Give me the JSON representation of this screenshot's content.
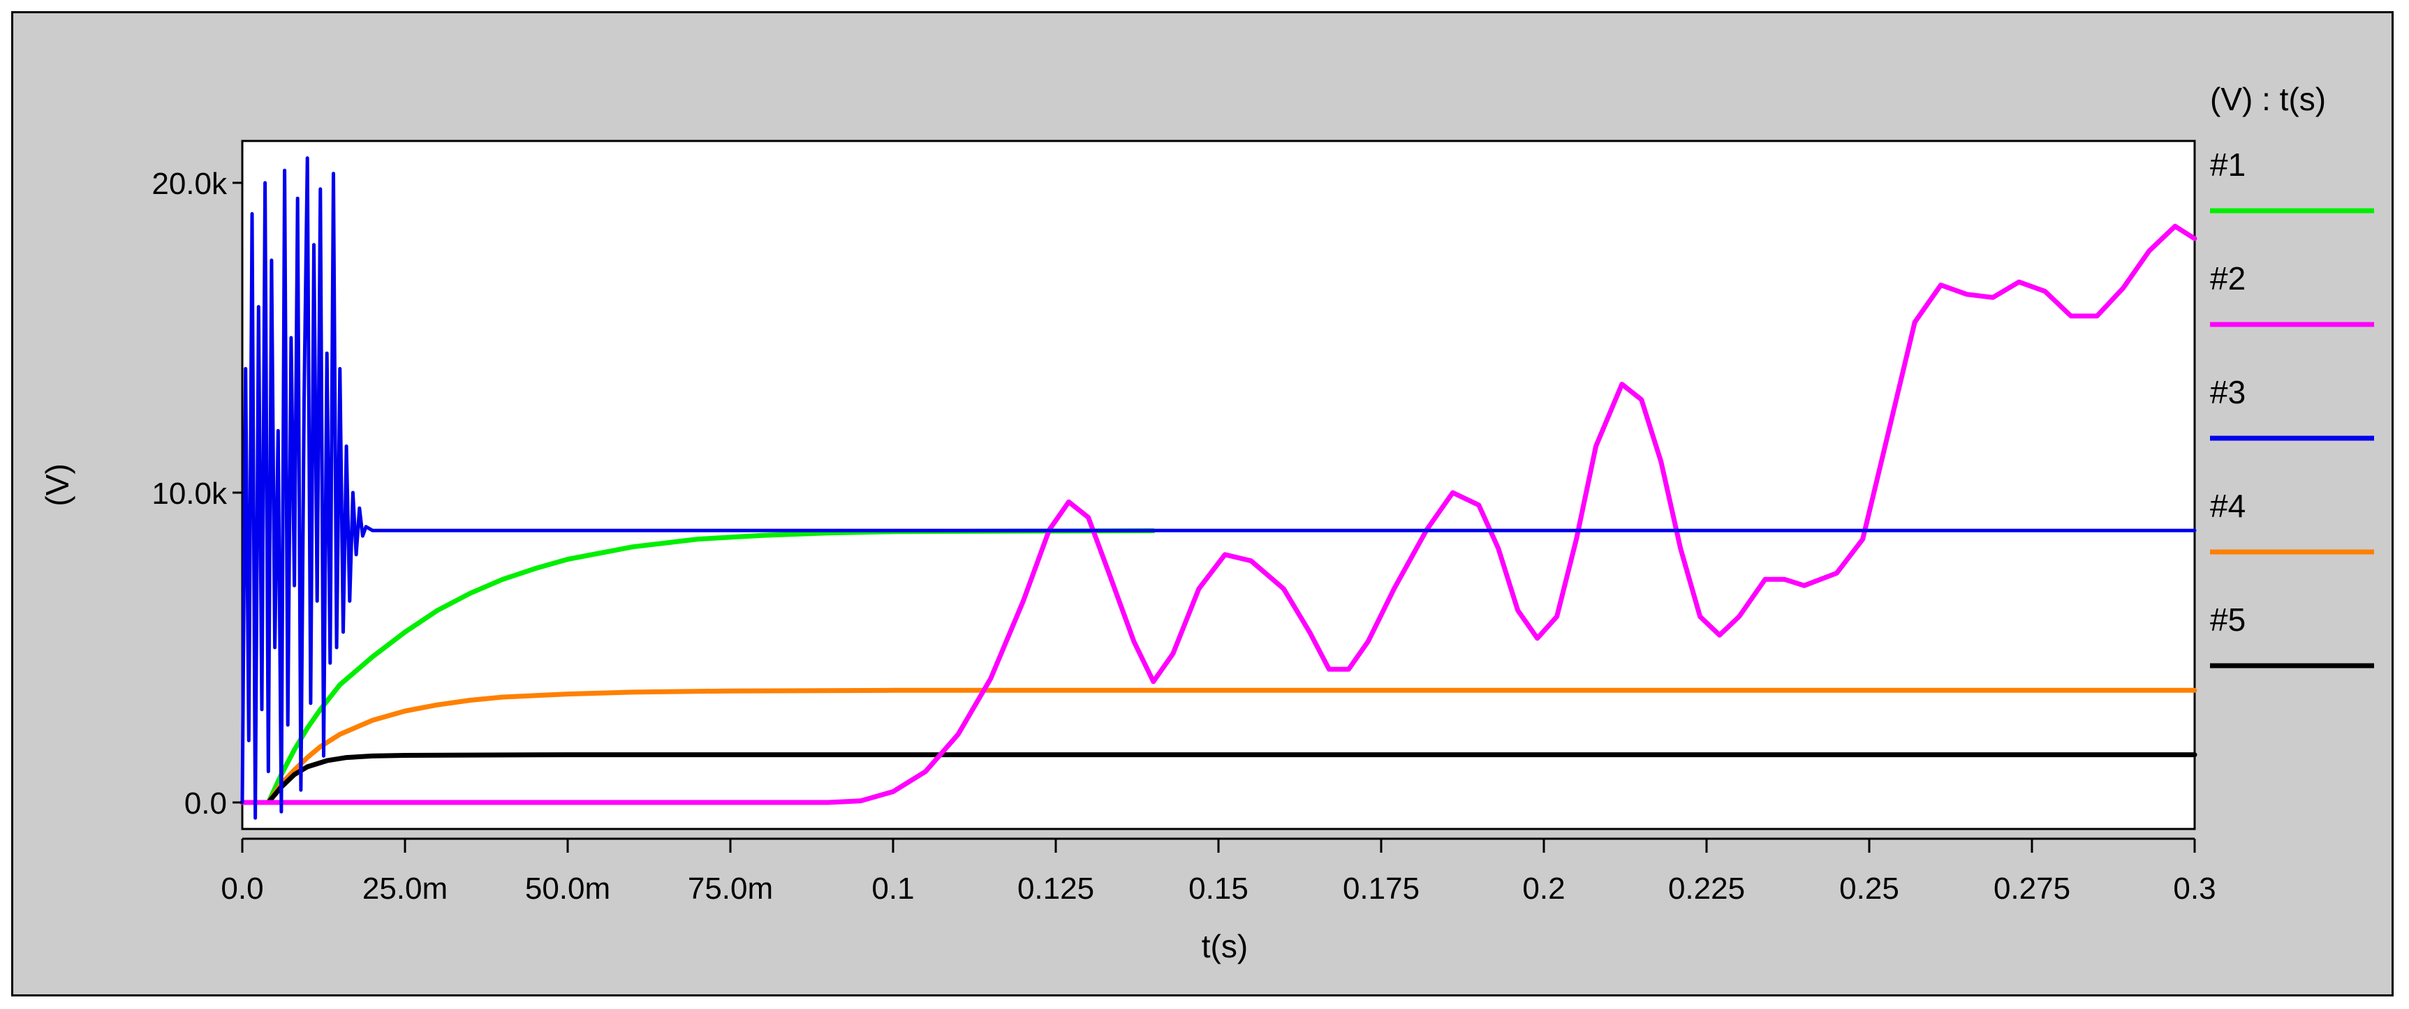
{
  "chart_data": {
    "type": "line",
    "title": "",
    "xlabel": "t(s)",
    "ylabel": "(V)",
    "legend_title": "(V) : t(s)",
    "legend_placement": "right",
    "grid": false,
    "xlim": [
      0,
      0.3
    ],
    "ylim": [
      -800,
      21500
    ],
    "x_ticks": [
      {
        "value": 0,
        "label": "0.0"
      },
      {
        "value": 0.025,
        "label": "25.0m"
      },
      {
        "value": 0.05,
        "label": "50.0m"
      },
      {
        "value": 0.075,
        "label": "75.0m"
      },
      {
        "value": 0.1,
        "label": "0.1"
      },
      {
        "value": 0.125,
        "label": "0.125"
      },
      {
        "value": 0.15,
        "label": "0.15"
      },
      {
        "value": 0.175,
        "label": "0.175"
      },
      {
        "value": 0.2,
        "label": "0.2"
      },
      {
        "value": 0.225,
        "label": "0.225"
      },
      {
        "value": 0.25,
        "label": "0.25"
      },
      {
        "value": 0.275,
        "label": "0.275"
      },
      {
        "value": 0.3,
        "label": "0.3"
      }
    ],
    "y_ticks": [
      {
        "value": 0,
        "label": "0.0"
      },
      {
        "value": 10000,
        "label": "10.0k"
      },
      {
        "value": 20000,
        "label": "20.0k"
      }
    ],
    "series": [
      {
        "name": "#1",
        "color": "#00ee00",
        "points": [
          [
            0.004,
            0
          ],
          [
            0.006,
            900
          ],
          [
            0.008,
            1700
          ],
          [
            0.01,
            2400
          ],
          [
            0.012,
            3000
          ],
          [
            0.015,
            3800
          ],
          [
            0.02,
            4700
          ],
          [
            0.025,
            5500
          ],
          [
            0.03,
            6200
          ],
          [
            0.035,
            6750
          ],
          [
            0.04,
            7200
          ],
          [
            0.045,
            7550
          ],
          [
            0.05,
            7850
          ],
          [
            0.06,
            8250
          ],
          [
            0.07,
            8500
          ],
          [
            0.08,
            8620
          ],
          [
            0.09,
            8700
          ],
          [
            0.1,
            8740
          ],
          [
            0.12,
            8760
          ],
          [
            0.14,
            8770
          ]
        ]
      },
      {
        "name": "#2",
        "color": "#ff00ff",
        "points": [
          [
            0,
            0
          ],
          [
            0.09,
            0
          ],
          [
            0.095,
            50
          ],
          [
            0.1,
            350
          ],
          [
            0.105,
            1000
          ],
          [
            0.11,
            2200
          ],
          [
            0.115,
            4000
          ],
          [
            0.12,
            6500
          ],
          [
            0.124,
            8800
          ],
          [
            0.127,
            9700
          ],
          [
            0.13,
            9200
          ],
          [
            0.133,
            7500
          ],
          [
            0.137,
            5200
          ],
          [
            0.14,
            3900
          ],
          [
            0.143,
            4800
          ],
          [
            0.147,
            6900
          ],
          [
            0.151,
            8000
          ],
          [
            0.155,
            7800
          ],
          [
            0.16,
            6900
          ],
          [
            0.164,
            5500
          ],
          [
            0.167,
            4300
          ],
          [
            0.17,
            4300
          ],
          [
            0.173,
            5200
          ],
          [
            0.177,
            6900
          ],
          [
            0.182,
            8800
          ],
          [
            0.186,
            10000
          ],
          [
            0.19,
            9600
          ],
          [
            0.193,
            8200
          ],
          [
            0.196,
            6200
          ],
          [
            0.199,
            5300
          ],
          [
            0.202,
            6000
          ],
          [
            0.205,
            8500
          ],
          [
            0.208,
            11500
          ],
          [
            0.212,
            13500
          ],
          [
            0.215,
            13000
          ],
          [
            0.218,
            11000
          ],
          [
            0.221,
            8200
          ],
          [
            0.224,
            6000
          ],
          [
            0.227,
            5400
          ],
          [
            0.23,
            6000
          ],
          [
            0.234,
            7200
          ],
          [
            0.237,
            7200
          ],
          [
            0.24,
            7000
          ],
          [
            0.245,
            7400
          ],
          [
            0.249,
            8500
          ],
          [
            0.253,
            12000
          ],
          [
            0.257,
            15500
          ],
          [
            0.261,
            16700
          ],
          [
            0.265,
            16400
          ],
          [
            0.269,
            16300
          ],
          [
            0.273,
            16800
          ],
          [
            0.277,
            16500
          ],
          [
            0.281,
            15700
          ],
          [
            0.285,
            15700
          ],
          [
            0.289,
            16600
          ],
          [
            0.293,
            17800
          ],
          [
            0.297,
            18600
          ],
          [
            0.3,
            18200
          ]
        ]
      },
      {
        "name": "#3",
        "color": "#0000ee",
        "points": [
          [
            0,
            0
          ],
          [
            0.0005,
            14000
          ],
          [
            0.001,
            2000
          ],
          [
            0.0015,
            19000
          ],
          [
            0.002,
            -500
          ],
          [
            0.0025,
            16000
          ],
          [
            0.003,
            3000
          ],
          [
            0.0035,
            20000
          ],
          [
            0.004,
            1000
          ],
          [
            0.0045,
            17500
          ],
          [
            0.005,
            5000
          ],
          [
            0.0055,
            12000
          ],
          [
            0.006,
            -300
          ],
          [
            0.0065,
            20400
          ],
          [
            0.007,
            2500
          ],
          [
            0.0075,
            15000
          ],
          [
            0.008,
            7000
          ],
          [
            0.0085,
            19500
          ],
          [
            0.009,
            400
          ],
          [
            0.0095,
            13000
          ],
          [
            0.01,
            20800
          ],
          [
            0.0105,
            3200
          ],
          [
            0.011,
            18000
          ],
          [
            0.0115,
            6500
          ],
          [
            0.012,
            19800
          ],
          [
            0.0125,
            1500
          ],
          [
            0.013,
            14500
          ],
          [
            0.0135,
            4500
          ],
          [
            0.014,
            20300
          ],
          [
            0.0145,
            5000
          ],
          [
            0.015,
            14000
          ],
          [
            0.0155,
            5500
          ],
          [
            0.016,
            11500
          ],
          [
            0.0165,
            6500
          ],
          [
            0.017,
            10000
          ],
          [
            0.0175,
            8000
          ],
          [
            0.018,
            9500
          ],
          [
            0.0185,
            8600
          ],
          [
            0.019,
            8900
          ],
          [
            0.02,
            8780
          ],
          [
            0.05,
            8780
          ],
          [
            0.1,
            8780
          ],
          [
            0.2,
            8780
          ],
          [
            0.3,
            8780
          ]
        ]
      },
      {
        "name": "#4",
        "color": "#ff8000",
        "points": [
          [
            0.004,
            0
          ],
          [
            0.006,
            600
          ],
          [
            0.008,
            1050
          ],
          [
            0.01,
            1450
          ],
          [
            0.012,
            1800
          ],
          [
            0.015,
            2200
          ],
          [
            0.02,
            2650
          ],
          [
            0.025,
            2950
          ],
          [
            0.03,
            3150
          ],
          [
            0.035,
            3300
          ],
          [
            0.04,
            3400
          ],
          [
            0.05,
            3500
          ],
          [
            0.06,
            3560
          ],
          [
            0.075,
            3600
          ],
          [
            0.1,
            3620
          ],
          [
            0.2,
            3620
          ],
          [
            0.3,
            3620
          ]
        ]
      },
      {
        "name": "#5",
        "color": "#000000",
        "points": [
          [
            0,
            0
          ],
          [
            0.004,
            0
          ],
          [
            0.006,
            500
          ],
          [
            0.008,
            900
          ],
          [
            0.01,
            1150
          ],
          [
            0.013,
            1350
          ],
          [
            0.016,
            1450
          ],
          [
            0.02,
            1500
          ],
          [
            0.025,
            1520
          ],
          [
            0.05,
            1540
          ],
          [
            0.1,
            1540
          ],
          [
            0.2,
            1540
          ],
          [
            0.3,
            1540
          ]
        ]
      }
    ]
  }
}
